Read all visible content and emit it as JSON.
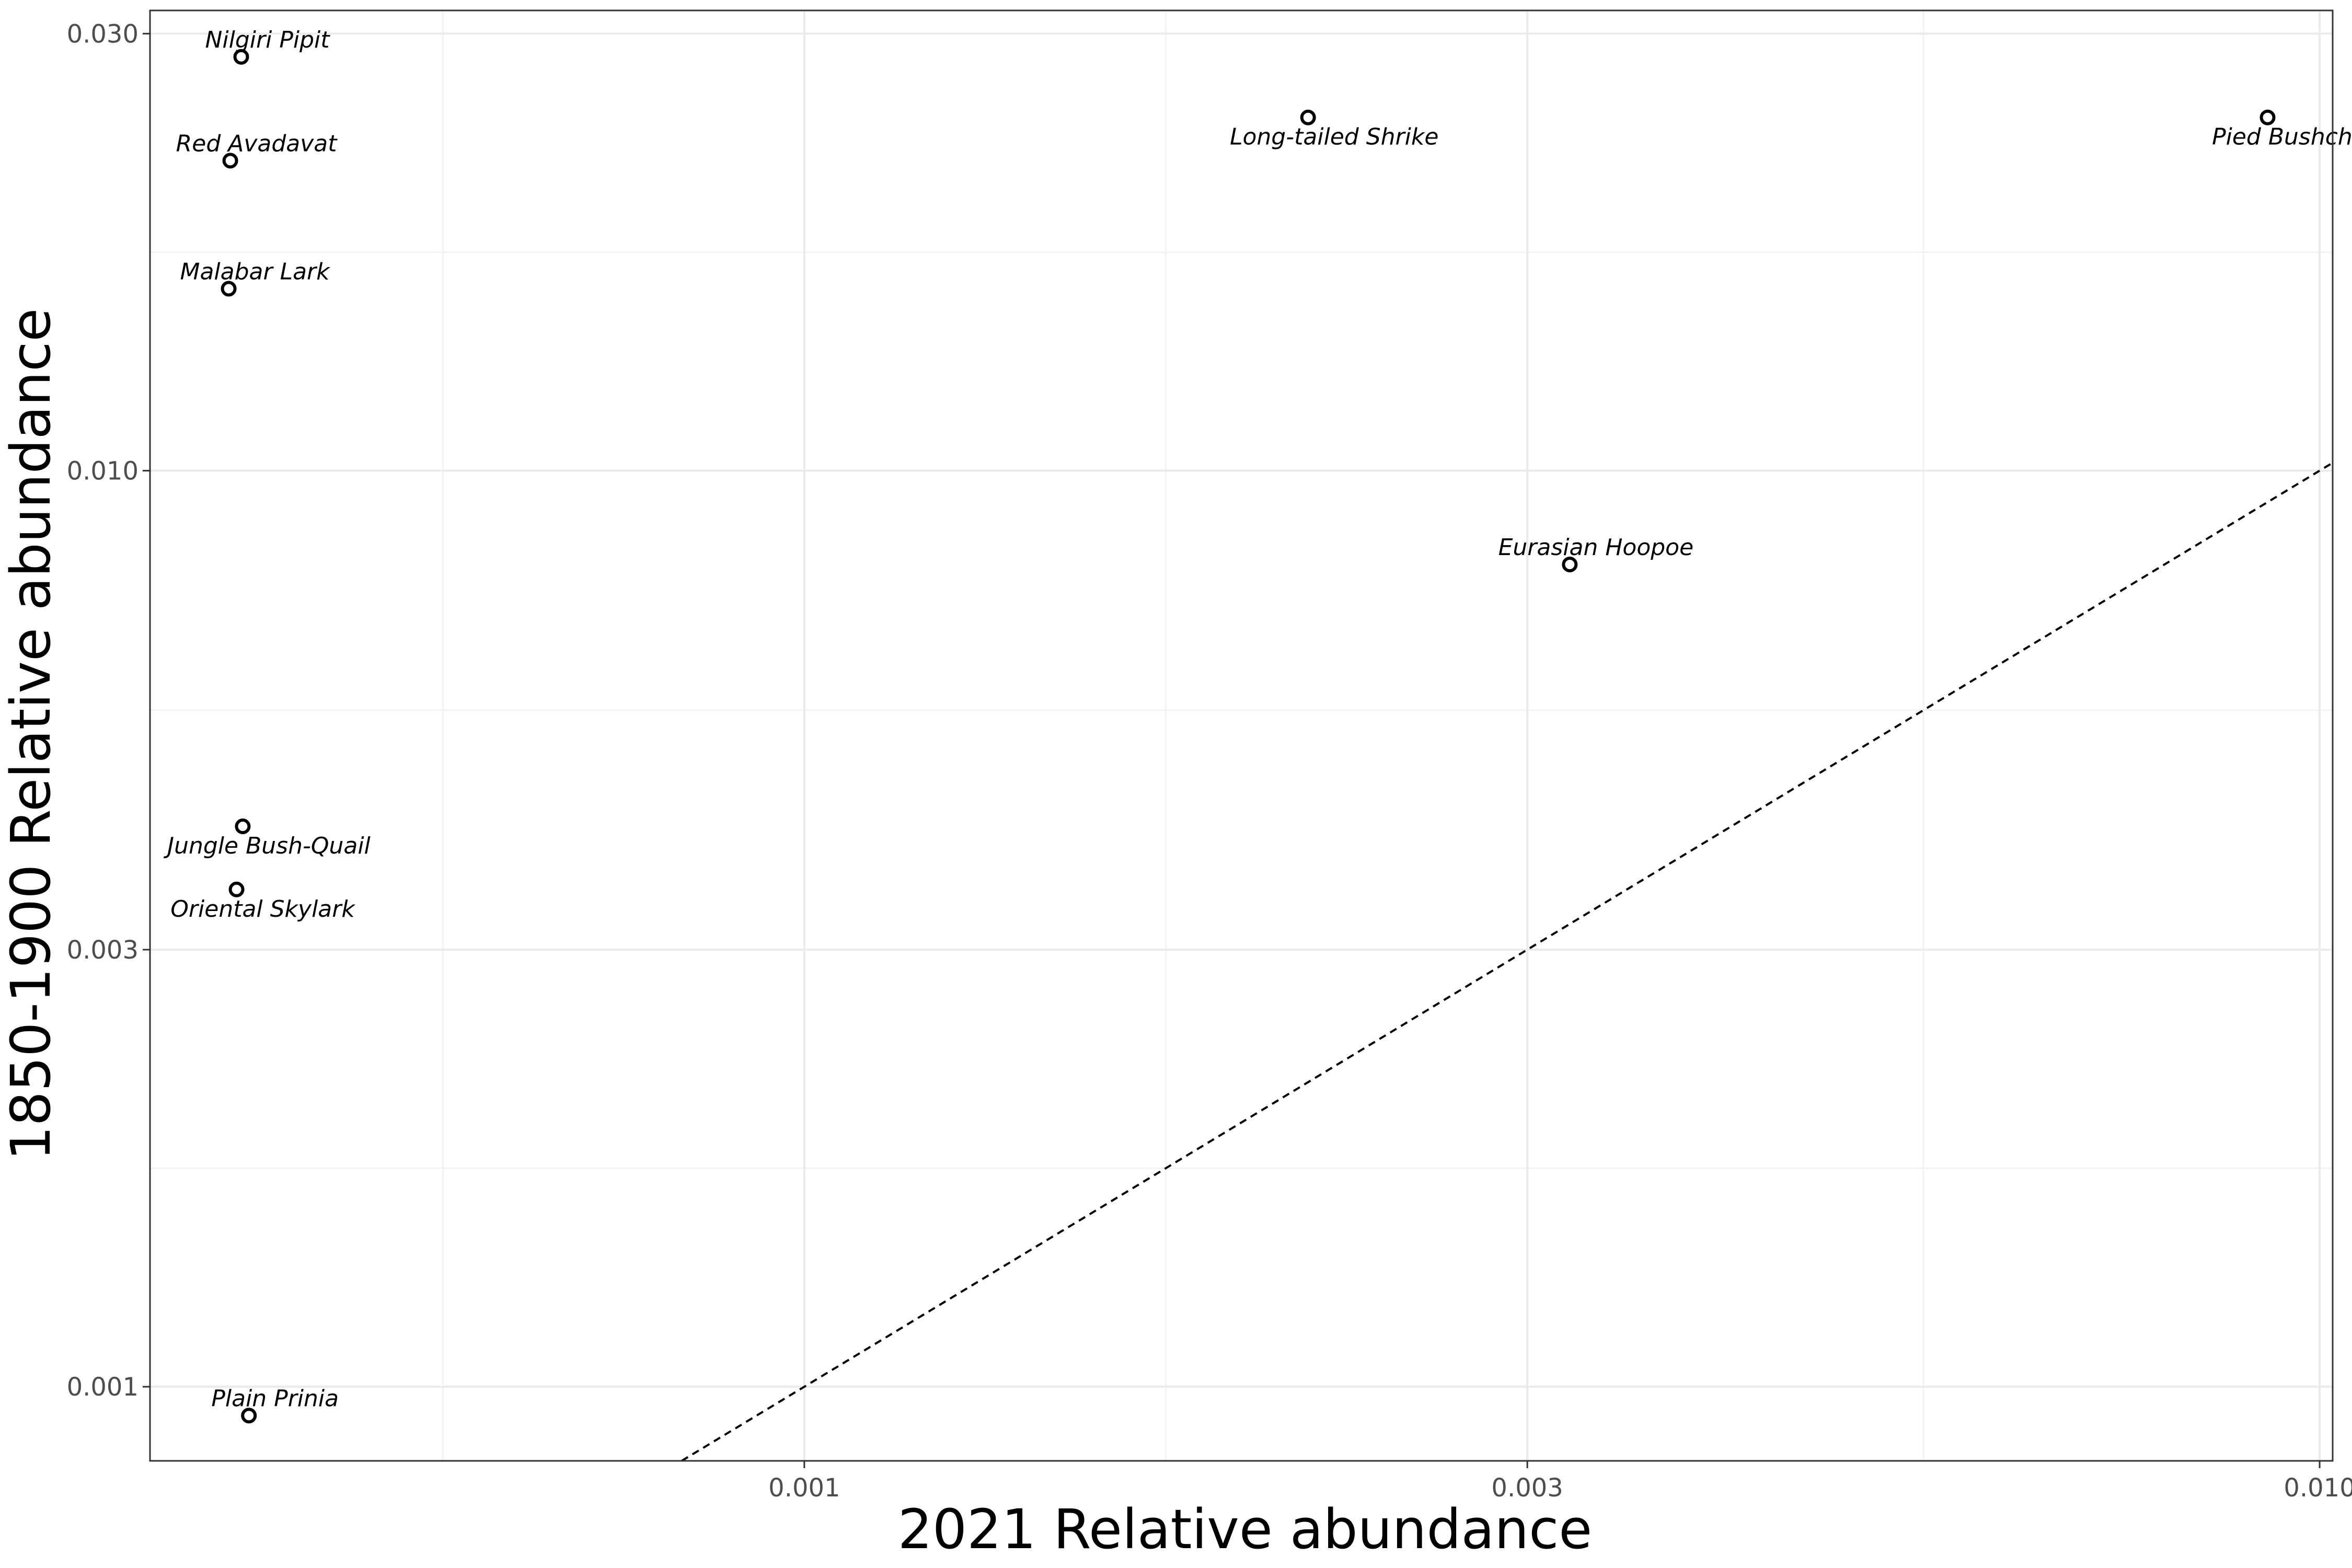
{
  "colors": {
    "background": "#ffffff",
    "panel_border": "#333333",
    "grid_major": "#ebebeb",
    "grid_minor": "#f2f2f2",
    "points": "#000000",
    "reference_line": "#000000",
    "tick_text": "#4d4d4d"
  },
  "chart_data": {
    "type": "scatter",
    "title": "",
    "xlabel": "2021 Relative abundance",
    "ylabel": "1850-1900 Relative abundance",
    "x_scale": "log10",
    "y_scale": "log10",
    "xlim": [
      0.00037,
      0.0102
    ],
    "ylim": [
      0.00083,
      0.0318
    ],
    "x_ticks": [
      0.001,
      0.003,
      0.01
    ],
    "x_tick_labels": [
      "0.001",
      "0.003",
      "0.010"
    ],
    "y_ticks": [
      0.001,
      0.003,
      0.01,
      0.03
    ],
    "y_tick_labels": [
      "0.001",
      "0.003",
      "0.010",
      "0.030"
    ],
    "grid": true,
    "reference_line": {
      "type": "identity",
      "style": "dashed",
      "label": ""
    },
    "points": [
      {
        "name": "Nilgiri Pipit",
        "x": 0.000425,
        "y": 0.0283,
        "label_pos": "above"
      },
      {
        "name": "Red Avadavat",
        "x": 0.000418,
        "y": 0.0218,
        "label_pos": "above"
      },
      {
        "name": "Malabar Lark",
        "x": 0.000417,
        "y": 0.0158,
        "label_pos": "above"
      },
      {
        "name": "Jungle Bush-Quail",
        "x": 0.000426,
        "y": 0.00409,
        "label_pos": "below"
      },
      {
        "name": "Oriental Skylark",
        "x": 0.000422,
        "y": 0.00349,
        "label_pos": "below"
      },
      {
        "name": "Plain Prinia",
        "x": 0.00043,
        "y": 0.00093,
        "label_pos": "above"
      },
      {
        "name": "Long-tailed Shrike",
        "x": 0.00215,
        "y": 0.0243,
        "label_pos": "below"
      },
      {
        "name": "Pied Bushchat",
        "x": 0.00924,
        "y": 0.0243,
        "label_pos": "below"
      },
      {
        "name": "Eurasian Hoopoe",
        "x": 0.0032,
        "y": 0.0079,
        "label_pos": "above"
      }
    ]
  }
}
